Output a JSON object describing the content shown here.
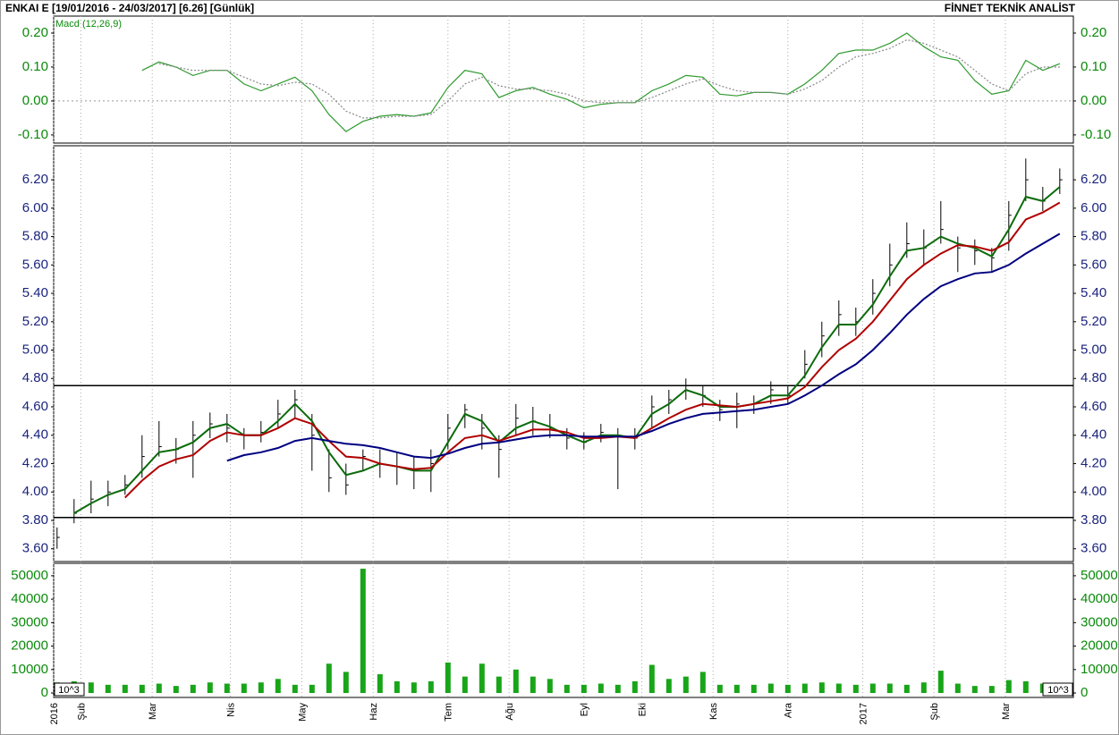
{
  "header": {
    "title": "ENKAI E  [19/01/2016 - 24/03/2017]  [6.26]  [Günlük]",
    "brand": "FİNNET TEKNİK ANALİST"
  },
  "chart_data": [
    {
      "type": "line",
      "label": "Macd (12,26,9)",
      "label_color": "#0a8a0a",
      "x": [
        1,
        6,
        11,
        16,
        21,
        26,
        31,
        36,
        41,
        46,
        51,
        56,
        61,
        66,
        71,
        76,
        81,
        86,
        91,
        96,
        101,
        106,
        111,
        116,
        121,
        126,
        131,
        136,
        141,
        146,
        151,
        156,
        161,
        166,
        171,
        176,
        181,
        186,
        191,
        196,
        201,
        206,
        211,
        216,
        221,
        226,
        231,
        236,
        241,
        246,
        251,
        256,
        261,
        266,
        271,
        276,
        281,
        286,
        291,
        296
      ],
      "xlim": [
        0,
        300
      ],
      "series": [
        {
          "color": "#2e9a2e",
          "dash": false,
          "values": [
            null,
            null,
            null,
            null,
            null,
            0.09,
            0.115,
            0.1,
            0.075,
            0.09,
            0.09,
            0.05,
            0.03,
            0.05,
            0.07,
            0.03,
            -0.04,
            -0.09,
            -0.06,
            -0.045,
            -0.04,
            -0.045,
            -0.035,
            0.04,
            0.09,
            0.08,
            0.01,
            0.03,
            0.04,
            0.02,
            0.005,
            -0.02,
            -0.01,
            -0.005,
            -0.005,
            0.03,
            0.05,
            0.075,
            0.07,
            0.02,
            0.015,
            0.025,
            0.025,
            0.02,
            0.05,
            0.09,
            0.14,
            0.15,
            0.15,
            0.17,
            0.2,
            0.16,
            0.13,
            0.12,
            0.06,
            0.02,
            0.03,
            0.12,
            0.09,
            0.11
          ]
        },
        {
          "color": "#888888",
          "dash": true,
          "values": [
            null,
            null,
            null,
            null,
            null,
            null,
            0.11,
            0.1,
            0.09,
            0.09,
            0.09,
            0.07,
            0.05,
            0.045,
            0.055,
            0.05,
            0.02,
            -0.03,
            -0.05,
            -0.05,
            -0.045,
            -0.045,
            -0.04,
            0.0,
            0.05,
            0.07,
            0.045,
            0.035,
            0.035,
            0.03,
            0.02,
            0.0,
            -0.005,
            -0.005,
            -0.005,
            0.01,
            0.03,
            0.05,
            0.065,
            0.045,
            0.03,
            0.025,
            0.025,
            0.02,
            0.035,
            0.06,
            0.1,
            0.13,
            0.14,
            0.155,
            0.18,
            0.17,
            0.15,
            0.13,
            0.09,
            0.05,
            0.03,
            0.08,
            0.1,
            0.1
          ]
        }
      ],
      "ylim": [
        -0.124,
        0.25
      ],
      "yticks": [
        {
          "value": 0.2,
          "label": "0.20"
        },
        {
          "value": 0.1,
          "label": "0.10"
        },
        {
          "value": 0,
          "label": "0.00"
        },
        {
          "value": -0.1,
          "label": "-0.10"
        }
      ],
      "tick_color": "#0a8a0a"
    },
    {
      "type": "ohlc",
      "x": [
        1,
        6,
        11,
        16,
        21,
        26,
        31,
        36,
        41,
        46,
        51,
        56,
        61,
        66,
        71,
        76,
        81,
        86,
        91,
        96,
        101,
        106,
        111,
        116,
        121,
        126,
        131,
        136,
        141,
        146,
        151,
        156,
        161,
        166,
        171,
        176,
        181,
        186,
        191,
        196,
        201,
        206,
        211,
        216,
        221,
        226,
        231,
        236,
        241,
        246,
        251,
        256,
        261,
        266,
        271,
        276,
        281,
        286,
        291,
        296
      ],
      "xlim": [
        0,
        300
      ],
      "high": [
        3.75,
        3.95,
        4.08,
        4.08,
        4.12,
        4.4,
        4.5,
        4.38,
        4.5,
        4.56,
        4.55,
        4.45,
        4.5,
        4.65,
        4.72,
        4.55,
        4.3,
        4.2,
        4.3,
        4.3,
        4.28,
        4.25,
        4.3,
        4.55,
        4.62,
        4.55,
        4.4,
        4.62,
        4.6,
        4.55,
        4.45,
        4.42,
        4.48,
        4.45,
        4.45,
        4.68,
        4.72,
        4.8,
        4.75,
        4.65,
        4.7,
        4.68,
        4.78,
        4.75,
        5.0,
        5.2,
        5.35,
        5.3,
        5.5,
        5.75,
        5.9,
        5.85,
        6.05,
        5.8,
        5.78,
        5.72,
        6.05,
        6.35,
        6.15,
        6.28
      ],
      "low": [
        3.6,
        3.78,
        3.85,
        3.9,
        3.98,
        4.1,
        4.25,
        4.2,
        4.1,
        4.38,
        4.35,
        4.3,
        4.35,
        4.45,
        4.52,
        4.15,
        4.0,
        3.98,
        4.15,
        4.1,
        4.05,
        4.02,
        4.0,
        4.3,
        4.45,
        4.3,
        4.1,
        4.4,
        4.4,
        4.38,
        4.3,
        4.3,
        4.35,
        4.02,
        4.3,
        4.45,
        4.55,
        4.65,
        4.6,
        4.5,
        4.45,
        4.55,
        4.62,
        4.62,
        4.8,
        4.95,
        5.1,
        5.1,
        5.25,
        5.45,
        5.65,
        5.6,
        5.75,
        5.55,
        5.6,
        5.55,
        5.7,
        6.05,
        5.98,
        6.1
      ],
      "close": [
        3.68,
        3.85,
        3.95,
        4.0,
        4.05,
        4.25,
        4.32,
        4.3,
        4.4,
        4.48,
        4.45,
        4.4,
        4.42,
        4.55,
        4.65,
        4.4,
        4.1,
        4.05,
        4.25,
        4.2,
        4.18,
        4.15,
        4.2,
        4.45,
        4.58,
        4.45,
        4.3,
        4.52,
        4.5,
        4.45,
        4.38,
        4.35,
        4.42,
        4.4,
        4.38,
        4.6,
        4.65,
        4.75,
        4.68,
        4.58,
        4.62,
        4.62,
        4.72,
        4.68,
        4.9,
        5.1,
        5.25,
        5.2,
        5.4,
        5.6,
        5.75,
        5.72,
        5.85,
        5.72,
        5.7,
        5.65,
        5.95,
        6.2,
        6.05,
        6.2
      ],
      "color": "#000000",
      "series": [
        {
          "color": "#0b6b0b",
          "values": [
            null,
            3.85,
            3.92,
            3.98,
            4.02,
            4.15,
            4.28,
            4.3,
            4.35,
            4.45,
            4.48,
            4.4,
            4.4,
            4.5,
            4.62,
            4.5,
            4.28,
            4.12,
            4.15,
            4.2,
            4.18,
            4.15,
            4.15,
            4.35,
            4.55,
            4.5,
            4.35,
            4.45,
            4.5,
            4.46,
            4.4,
            4.35,
            4.4,
            4.4,
            4.38,
            4.55,
            4.62,
            4.72,
            4.68,
            4.6,
            4.6,
            4.62,
            4.68,
            4.68,
            4.82,
            5.02,
            5.18,
            5.18,
            5.32,
            5.52,
            5.7,
            5.72,
            5.8,
            5.75,
            5.72,
            5.66,
            5.85,
            6.08,
            6.05,
            6.15
          ]
        },
        {
          "color": "#b00000",
          "values": [
            null,
            null,
            null,
            null,
            3.96,
            4.08,
            4.18,
            4.23,
            4.26,
            4.36,
            4.42,
            4.4,
            4.4,
            4.45,
            4.52,
            4.48,
            4.36,
            4.25,
            4.24,
            4.2,
            4.18,
            4.16,
            4.17,
            4.28,
            4.38,
            4.4,
            4.36,
            4.4,
            4.44,
            4.44,
            4.42,
            4.38,
            4.38,
            4.39,
            4.38,
            4.45,
            4.52,
            4.58,
            4.62,
            4.61,
            4.6,
            4.62,
            4.64,
            4.66,
            4.74,
            4.88,
            5.0,
            5.08,
            5.2,
            5.35,
            5.5,
            5.6,
            5.68,
            5.74,
            5.73,
            5.7,
            5.76,
            5.92,
            5.97,
            6.04
          ]
        },
        {
          "color": "#000080",
          "values": [
            null,
            null,
            null,
            null,
            null,
            null,
            null,
            null,
            null,
            null,
            4.22,
            4.26,
            4.28,
            4.31,
            4.36,
            4.38,
            4.36,
            4.34,
            4.33,
            4.31,
            4.28,
            4.25,
            4.24,
            4.27,
            4.31,
            4.34,
            4.35,
            4.37,
            4.39,
            4.4,
            4.4,
            4.39,
            4.39,
            4.39,
            4.39,
            4.43,
            4.48,
            4.52,
            4.55,
            4.56,
            4.57,
            4.58,
            4.6,
            4.62,
            4.68,
            4.75,
            4.83,
            4.9,
            5.0,
            5.12,
            5.25,
            5.36,
            5.45,
            5.5,
            5.54,
            5.55,
            5.6,
            5.68,
            5.75,
            5.82
          ]
        }
      ],
      "levels": [
        4.75,
        3.82
      ],
      "ylim": [
        3.51,
        6.44
      ],
      "yticks": [
        {
          "value": 3.6,
          "label": "3.60"
        },
        {
          "value": 3.8,
          "label": "3.80"
        },
        {
          "value": 4,
          "label": "4.00"
        },
        {
          "value": 4.2,
          "label": "4.20"
        },
        {
          "value": 4.4,
          "label": "4.40"
        },
        {
          "value": 4.6,
          "label": "4.60"
        },
        {
          "value": 4.8,
          "label": "4.80"
        },
        {
          "value": 5,
          "label": "5.00"
        },
        {
          "value": 5.2,
          "label": "5.20"
        },
        {
          "value": 5.4,
          "label": "5.40"
        },
        {
          "value": 5.6,
          "label": "5.60"
        },
        {
          "value": 5.8,
          "label": "5.80"
        },
        {
          "value": 6,
          "label": "6.00"
        },
        {
          "value": 6.2,
          "label": "6.20"
        }
      ],
      "tick_color": "#1a237e"
    },
    {
      "type": "bar",
      "unit_label": "10^3",
      "x": [
        1,
        6,
        11,
        16,
        21,
        26,
        31,
        36,
        41,
        46,
        51,
        56,
        61,
        66,
        71,
        76,
        81,
        86,
        91,
        96,
        101,
        106,
        111,
        116,
        121,
        126,
        131,
        136,
        141,
        146,
        151,
        156,
        161,
        166,
        171,
        176,
        181,
        186,
        191,
        196,
        201,
        206,
        211,
        216,
        221,
        226,
        231,
        236,
        241,
        246,
        251,
        256,
        261,
        266,
        271,
        276,
        281,
        286,
        291,
        296
      ],
      "xlim": [
        0,
        300
      ],
      "values": [
        4500,
        5000,
        4500,
        3500,
        3500,
        3500,
        4000,
        3000,
        3500,
        4500,
        4000,
        4000,
        4500,
        6000,
        3500,
        3500,
        12500,
        9000,
        53000,
        8000,
        5000,
        4500,
        5000,
        13000,
        7000,
        12500,
        7000,
        10000,
        7000,
        6000,
        3500,
        3500,
        4000,
        3500,
        5000,
        12000,
        6000,
        7000,
        9000,
        3500,
        3500,
        3500,
        4000,
        3500,
        4000,
        4500,
        4000,
        3500,
        4000,
        4000,
        3500,
        4500,
        9500,
        4000,
        3000,
        3000,
        5500,
        5000,
        4000,
        3000
      ],
      "color": "#19a519",
      "ylim": [
        -1900,
        55300
      ],
      "yticks": [
        0,
        10000,
        20000,
        30000,
        40000,
        50000
      ],
      "tick_color": "#0a8a0a",
      "xticks": [
        {
          "value": 0,
          "label": "2016"
        },
        {
          "value": 8,
          "label": "Şub"
        },
        {
          "value": 29,
          "label": "Mar"
        },
        {
          "value": 52,
          "label": "Nis"
        },
        {
          "value": 73,
          "label": "May"
        },
        {
          "value": 94,
          "label": "Haz"
        },
        {
          "value": 116,
          "label": "Tem"
        },
        {
          "value": 134,
          "label": "Ağu"
        },
        {
          "value": 156,
          "label": "Eyl"
        },
        {
          "value": 173,
          "label": "Eki"
        },
        {
          "value": 194,
          "label": "Kas"
        },
        {
          "value": 216,
          "label": "Ara"
        },
        {
          "value": 238,
          "label": "2017"
        },
        {
          "value": 259,
          "label": "Şub"
        },
        {
          "value": 280,
          "label": "Mar"
        }
      ]
    }
  ]
}
